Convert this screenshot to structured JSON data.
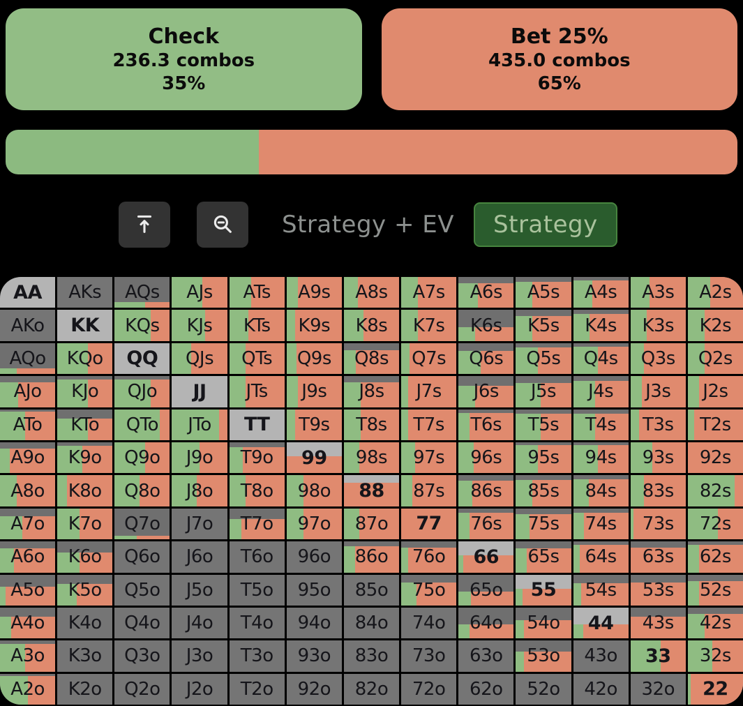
{
  "colors": {
    "check_green": "#92bd85",
    "bet_salmon": "#e08a6e",
    "cell_green": "#8fbc82",
    "cell_salmon": "#e08a6e",
    "gray_dark": "#757575",
    "gray_band": "#6f6f6f",
    "gray_pair": "#b4b4b4",
    "background": "#000000"
  },
  "header": {
    "actions": [
      {
        "label": "Check",
        "combos": "236.3 combos",
        "pct": "35%",
        "color": "#92bd85"
      },
      {
        "label": "Bet 25%",
        "combos": "435.0 combos",
        "pct": "65%",
        "color": "#e08a6e"
      }
    ]
  },
  "split_bar": {
    "segments": [
      {
        "name": "check",
        "pct": 34.6,
        "color": "#8cba80"
      },
      {
        "name": "bet",
        "pct": 65.4,
        "color": "#e08a6e"
      }
    ]
  },
  "toolbar": {
    "buttons": [
      {
        "name": "collapse-to-top-button",
        "icon": "arrow-to-top-icon"
      },
      {
        "name": "zoom-out-button",
        "icon": "magnifier-minus-icon"
      }
    ],
    "mode_label": "Strategy + EV",
    "active_mode": "Strategy"
  },
  "matrix": {
    "legend": {
      "w": "fraction of combos in range (colored area height)",
      "g": "check/green fraction of strategy width",
      "p": "pocket pair (light gray base)"
    },
    "rows": [
      [
        {
          "h": "AA",
          "w": 0,
          "g": 0,
          "p": 1
        },
        {
          "h": "AKs",
          "w": 0,
          "g": 0,
          "p": 0
        },
        {
          "h": "AQs",
          "w": 0.18,
          "g": 0.55,
          "p": 0
        },
        {
          "h": "AJs",
          "w": 1,
          "g": 0.55,
          "p": 0
        },
        {
          "h": "ATs",
          "w": 1,
          "g": 0.4,
          "p": 0
        },
        {
          "h": "A9s",
          "w": 1,
          "g": 0.2,
          "p": 0
        },
        {
          "h": "A8s",
          "w": 1,
          "g": 0.25,
          "p": 0
        },
        {
          "h": "A7s",
          "w": 1,
          "g": 0.3,
          "p": 0
        },
        {
          "h": "A6s",
          "w": 0.8,
          "g": 0.35,
          "p": 0
        },
        {
          "h": "A5s",
          "w": 0.85,
          "g": 0.3,
          "p": 0
        },
        {
          "h": "A4s",
          "w": 0.88,
          "g": 0.35,
          "p": 0
        },
        {
          "h": "A3s",
          "w": 1,
          "g": 0.35,
          "p": 0
        },
        {
          "h": "A2s",
          "w": 1,
          "g": 0.4,
          "p": 0
        }
      ],
      [
        {
          "h": "AKo",
          "w": 0,
          "g": 0,
          "p": 0
        },
        {
          "h": "KK",
          "w": 0,
          "g": 0,
          "p": 1
        },
        {
          "h": "KQs",
          "w": 1,
          "g": 0.65,
          "p": 0
        },
        {
          "h": "KJs",
          "w": 1,
          "g": 0.6,
          "p": 0
        },
        {
          "h": "KTs",
          "w": 1,
          "g": 0.35,
          "p": 0
        },
        {
          "h": "K9s",
          "w": 1,
          "g": 0.15,
          "p": 0
        },
        {
          "h": "K8s",
          "w": 1,
          "g": 0.35,
          "p": 0
        },
        {
          "h": "K7s",
          "w": 1,
          "g": 0.3,
          "p": 0
        },
        {
          "h": "K6s",
          "w": 0.45,
          "g": 0.3,
          "p": 0
        },
        {
          "h": "K5s",
          "w": 0.8,
          "g": 0.3,
          "p": 0
        },
        {
          "h": "K4s",
          "w": 0.88,
          "g": 0.3,
          "p": 0
        },
        {
          "h": "K3s",
          "w": 1,
          "g": 0.3,
          "p": 0
        },
        {
          "h": "K2s",
          "w": 1,
          "g": 0.3,
          "p": 0
        }
      ],
      [
        {
          "h": "AQo",
          "w": 0.18,
          "g": 0.3,
          "p": 0
        },
        {
          "h": "KQo",
          "w": 1,
          "g": 0.55,
          "p": 0
        },
        {
          "h": "QQ",
          "w": 0,
          "g": 0,
          "p": 1
        },
        {
          "h": "QJs",
          "w": 1,
          "g": 0.35,
          "p": 0
        },
        {
          "h": "QTs",
          "w": 1,
          "g": 0.3,
          "p": 0
        },
        {
          "h": "Q9s",
          "w": 1,
          "g": 0.18,
          "p": 0
        },
        {
          "h": "Q8s",
          "w": 0.78,
          "g": 0.22,
          "p": 0
        },
        {
          "h": "Q7s",
          "w": 1,
          "g": 0.15,
          "p": 0
        },
        {
          "h": "Q6s",
          "w": 0.75,
          "g": 0.4,
          "p": 0
        },
        {
          "h": "Q5s",
          "w": 0.85,
          "g": 0.4,
          "p": 0
        },
        {
          "h": "Q4s",
          "w": 0.88,
          "g": 0.45,
          "p": 0
        },
        {
          "h": "Q3s",
          "w": 1,
          "g": 0.25,
          "p": 0
        },
        {
          "h": "Q2s",
          "w": 1,
          "g": 0.3,
          "p": 0
        }
      ],
      [
        {
          "h": "AJo",
          "w": 0.8,
          "g": 0.33,
          "p": 0
        },
        {
          "h": "KJo",
          "w": 0.9,
          "g": 0.55,
          "p": 0
        },
        {
          "h": "QJo",
          "w": 0.9,
          "g": 0.65,
          "p": 0
        },
        {
          "h": "JJ",
          "w": 0,
          "g": 0,
          "p": 1
        },
        {
          "h": "JTs",
          "w": 1,
          "g": 0.3,
          "p": 0
        },
        {
          "h": "J9s",
          "w": 1,
          "g": 0.2,
          "p": 0
        },
        {
          "h": "J8s",
          "w": 0.8,
          "g": 0.3,
          "p": 0
        },
        {
          "h": "J7s",
          "w": 1,
          "g": 0.13,
          "p": 0
        },
        {
          "h": "J6s",
          "w": 0.7,
          "g": 0.3,
          "p": 0
        },
        {
          "h": "J5s",
          "w": 0.78,
          "g": 0.45,
          "p": 0
        },
        {
          "h": "J4s",
          "w": 0.85,
          "g": 0.4,
          "p": 0
        },
        {
          "h": "J3s",
          "w": 1,
          "g": 0.2,
          "p": 0
        },
        {
          "h": "J2s",
          "w": 1,
          "g": 0.2,
          "p": 0
        }
      ],
      [
        {
          "h": "ATo",
          "w": 0.92,
          "g": 0.45,
          "p": 0
        },
        {
          "h": "KTo",
          "w": 0.7,
          "g": 0.55,
          "p": 0
        },
        {
          "h": "QTo",
          "w": 1,
          "g": 0.82,
          "p": 0
        },
        {
          "h": "JTo",
          "w": 1,
          "g": 0.85,
          "p": 0
        },
        {
          "h": "TT",
          "w": 0,
          "g": 0,
          "p": 1
        },
        {
          "h": "T9s",
          "w": 1,
          "g": 0.15,
          "p": 0
        },
        {
          "h": "T8s",
          "w": 1,
          "g": 0.3,
          "p": 0
        },
        {
          "h": "T7s",
          "w": 1,
          "g": 0.12,
          "p": 0
        },
        {
          "h": "T6s",
          "w": 0.88,
          "g": 0.2,
          "p": 0
        },
        {
          "h": "T5s",
          "w": 0.85,
          "g": 0.45,
          "p": 0
        },
        {
          "h": "T4s",
          "w": 0.85,
          "g": 0.4,
          "p": 0
        },
        {
          "h": "T3s",
          "w": 1,
          "g": 0.15,
          "p": 0
        },
        {
          "h": "T2s",
          "w": 1,
          "g": 0.12,
          "p": 0
        }
      ],
      [
        {
          "h": "A9o",
          "w": 0.8,
          "g": 0.18,
          "p": 0
        },
        {
          "h": "K9o",
          "w": 0.88,
          "g": 0.45,
          "p": 0
        },
        {
          "h": "Q9o",
          "w": 1,
          "g": 0.55,
          "p": 0
        },
        {
          "h": "J9o",
          "w": 1,
          "g": 0.5,
          "p": 0
        },
        {
          "h": "T9o",
          "w": 0.85,
          "g": 0.25,
          "p": 0
        },
        {
          "h": "99",
          "w": 0.55,
          "g": 0,
          "p": 1
        },
        {
          "h": "98s",
          "w": 1,
          "g": 0.28,
          "p": 0
        },
        {
          "h": "97s",
          "w": 1,
          "g": 0.25,
          "p": 0
        },
        {
          "h": "96s",
          "w": 1,
          "g": 0.28,
          "p": 0
        },
        {
          "h": "95s",
          "w": 0.9,
          "g": 0.4,
          "p": 0
        },
        {
          "h": "94s",
          "w": 0.92,
          "g": 0.45,
          "p": 0
        },
        {
          "h": "93s",
          "w": 1,
          "g": 0.4,
          "p": 0
        },
        {
          "h": "92s",
          "w": 1,
          "g": 0,
          "p": 0
        }
      ],
      [
        {
          "h": "A8o",
          "w": 1,
          "g": 0.3,
          "p": 0
        },
        {
          "h": "K8o",
          "w": 1,
          "g": 0.18,
          "p": 0
        },
        {
          "h": "Q8o",
          "w": 1,
          "g": 0.45,
          "p": 0
        },
        {
          "h": "J8o",
          "w": 1,
          "g": 0.45,
          "p": 0
        },
        {
          "h": "T8o",
          "w": 1,
          "g": 0.3,
          "p": 0
        },
        {
          "h": "98o",
          "w": 1,
          "g": 0.3,
          "p": 0
        },
        {
          "h": "88",
          "w": 0.75,
          "g": 0,
          "p": 1
        },
        {
          "h": "87s",
          "w": 1,
          "g": 0.2,
          "p": 0
        },
        {
          "h": "86s",
          "w": 0.82,
          "g": 0.25,
          "p": 0
        },
        {
          "h": "85s",
          "w": 0.85,
          "g": 0.3,
          "p": 0
        },
        {
          "h": "84s",
          "w": 0.88,
          "g": 0.28,
          "p": 0
        },
        {
          "h": "83s",
          "w": 1,
          "g": 0.25,
          "p": 0
        },
        {
          "h": "82s",
          "w": 1,
          "g": 0.85,
          "p": 0
        }
      ],
      [
        {
          "h": "A7o",
          "w": 0.75,
          "g": 0.4,
          "p": 0
        },
        {
          "h": "K7o",
          "w": 1,
          "g": 0.4,
          "p": 0
        },
        {
          "h": "Q7o",
          "w": 0.12,
          "g": 0.4,
          "p": 0
        },
        {
          "h": "J7o",
          "w": 0,
          "g": 0,
          "p": 0
        },
        {
          "h": "T7o",
          "w": 0.65,
          "g": 0.22,
          "p": 0
        },
        {
          "h": "97o",
          "w": 1,
          "g": 0.3,
          "p": 0
        },
        {
          "h": "87o",
          "w": 1,
          "g": 0.28,
          "p": 0
        },
        {
          "h": "77",
          "w": 1,
          "g": 0,
          "p": 1
        },
        {
          "h": "76s",
          "w": 0.85,
          "g": 0.2,
          "p": 0
        },
        {
          "h": "75s",
          "w": 0.82,
          "g": 0.25,
          "p": 0
        },
        {
          "h": "74s",
          "w": 0.85,
          "g": 0.2,
          "p": 0
        },
        {
          "h": "73s",
          "w": 1,
          "g": 0.05,
          "p": 0
        },
        {
          "h": "72s",
          "w": 1,
          "g": 0.55,
          "p": 0
        }
      ],
      [
        {
          "h": "A6o",
          "w": 0.78,
          "g": 0.25,
          "p": 0
        },
        {
          "h": "K6o",
          "w": 0.65,
          "g": 0.4,
          "p": 0
        },
        {
          "h": "Q6o",
          "w": 0,
          "g": 0,
          "p": 0
        },
        {
          "h": "J6o",
          "w": 0,
          "g": 0,
          "p": 0
        },
        {
          "h": "T6o",
          "w": 0,
          "g": 0,
          "p": 0
        },
        {
          "h": "96o",
          "w": 0,
          "g": 0,
          "p": 0
        },
        {
          "h": "86o",
          "w": 0.85,
          "g": 0.2,
          "p": 0
        },
        {
          "h": "76o",
          "w": 0.8,
          "g": 0.12,
          "p": 0
        },
        {
          "h": "66",
          "w": 0.55,
          "g": 0.08,
          "p": 1
        },
        {
          "h": "65s",
          "w": 0.78,
          "g": 0.2,
          "p": 0
        },
        {
          "h": "64s",
          "w": 0.88,
          "g": 0.12,
          "p": 0
        },
        {
          "h": "63s",
          "w": 0.8,
          "g": 0,
          "p": 0
        },
        {
          "h": "62s",
          "w": 0.88,
          "g": 0.2,
          "p": 0
        }
      ],
      [
        {
          "h": "A5o",
          "w": 0.6,
          "g": 0.1,
          "p": 0
        },
        {
          "h": "K5o",
          "w": 0.7,
          "g": 0.35,
          "p": 0
        },
        {
          "h": "Q5o",
          "w": 0,
          "g": 0,
          "p": 0
        },
        {
          "h": "J5o",
          "w": 0,
          "g": 0,
          "p": 0
        },
        {
          "h": "T5o",
          "w": 0,
          "g": 0,
          "p": 0
        },
        {
          "h": "95o",
          "w": 0,
          "g": 0,
          "p": 0
        },
        {
          "h": "85o",
          "w": 0,
          "g": 0,
          "p": 0
        },
        {
          "h": "75o",
          "w": 0.75,
          "g": 0.28,
          "p": 0
        },
        {
          "h": "65o",
          "w": 0.45,
          "g": 0.22,
          "p": 0
        },
        {
          "h": "55",
          "w": 0.55,
          "g": 0.12,
          "p": 1
        },
        {
          "h": "54s",
          "w": 0.72,
          "g": 0.15,
          "p": 0
        },
        {
          "h": "53s",
          "w": 0.75,
          "g": 0,
          "p": 0
        },
        {
          "h": "52s",
          "w": 0.78,
          "g": 0.2,
          "p": 0
        }
      ],
      [
        {
          "h": "A4o",
          "w": 0.7,
          "g": 0.2,
          "p": 0
        },
        {
          "h": "K4o",
          "w": 0,
          "g": 0,
          "p": 0
        },
        {
          "h": "Q4o",
          "w": 0,
          "g": 0,
          "p": 0
        },
        {
          "h": "J4o",
          "w": 0,
          "g": 0,
          "p": 0
        },
        {
          "h": "T4o",
          "w": 0,
          "g": 0,
          "p": 0
        },
        {
          "h": "94o",
          "w": 0,
          "g": 0,
          "p": 0
        },
        {
          "h": "84o",
          "w": 0,
          "g": 0,
          "p": 0
        },
        {
          "h": "74o",
          "w": 0,
          "g": 0,
          "p": 0
        },
        {
          "h": "64o",
          "w": 0.45,
          "g": 0.2,
          "p": 0
        },
        {
          "h": "54o",
          "w": 0.6,
          "g": 0.15,
          "p": 0
        },
        {
          "h": "44",
          "w": 0.45,
          "g": 0.18,
          "p": 1
        },
        {
          "h": "43s",
          "w": 0.7,
          "g": 0,
          "p": 0
        },
        {
          "h": "42s",
          "w": 0.8,
          "g": 0.3,
          "p": 0
        }
      ],
      [
        {
          "h": "A3o",
          "w": 0.9,
          "g": 0.45,
          "p": 0
        },
        {
          "h": "K3o",
          "w": 0,
          "g": 0,
          "p": 0
        },
        {
          "h": "Q3o",
          "w": 0,
          "g": 0,
          "p": 0
        },
        {
          "h": "J3o",
          "w": 0,
          "g": 0,
          "p": 0
        },
        {
          "h": "T3o",
          "w": 0,
          "g": 0,
          "p": 0
        },
        {
          "h": "93o",
          "w": 0,
          "g": 0,
          "p": 0
        },
        {
          "h": "83o",
          "w": 0,
          "g": 0,
          "p": 0
        },
        {
          "h": "73o",
          "w": 0,
          "g": 0,
          "p": 0
        },
        {
          "h": "63o",
          "w": 0,
          "g": 0,
          "p": 0
        },
        {
          "h": "53o",
          "w": 0.65,
          "g": 0.15,
          "p": 0
        },
        {
          "h": "43o",
          "w": 0,
          "g": 0,
          "p": 0
        },
        {
          "h": "33",
          "w": 1,
          "g": 0.55,
          "p": 1
        },
        {
          "h": "32s",
          "w": 1,
          "g": 0.45,
          "p": 0
        }
      ],
      [
        {
          "h": "A2o",
          "w": 0.92,
          "g": 0.5,
          "p": 0
        },
        {
          "h": "K2o",
          "w": 0,
          "g": 0,
          "p": 0
        },
        {
          "h": "Q2o",
          "w": 0,
          "g": 0,
          "p": 0
        },
        {
          "h": "J2o",
          "w": 0,
          "g": 0,
          "p": 0
        },
        {
          "h": "T2o",
          "w": 0,
          "g": 0,
          "p": 0
        },
        {
          "h": "92o",
          "w": 0,
          "g": 0,
          "p": 0
        },
        {
          "h": "82o",
          "w": 0,
          "g": 0,
          "p": 0
        },
        {
          "h": "72o",
          "w": 0,
          "g": 0,
          "p": 0
        },
        {
          "h": "62o",
          "w": 0,
          "g": 0,
          "p": 0
        },
        {
          "h": "52o",
          "w": 0,
          "g": 0,
          "p": 0
        },
        {
          "h": "42o",
          "w": 0,
          "g": 0,
          "p": 0
        },
        {
          "h": "32o",
          "w": 0,
          "g": 0,
          "p": 0
        },
        {
          "h": "22",
          "w": 1,
          "g": 0.05,
          "p": 1
        }
      ]
    ]
  }
}
